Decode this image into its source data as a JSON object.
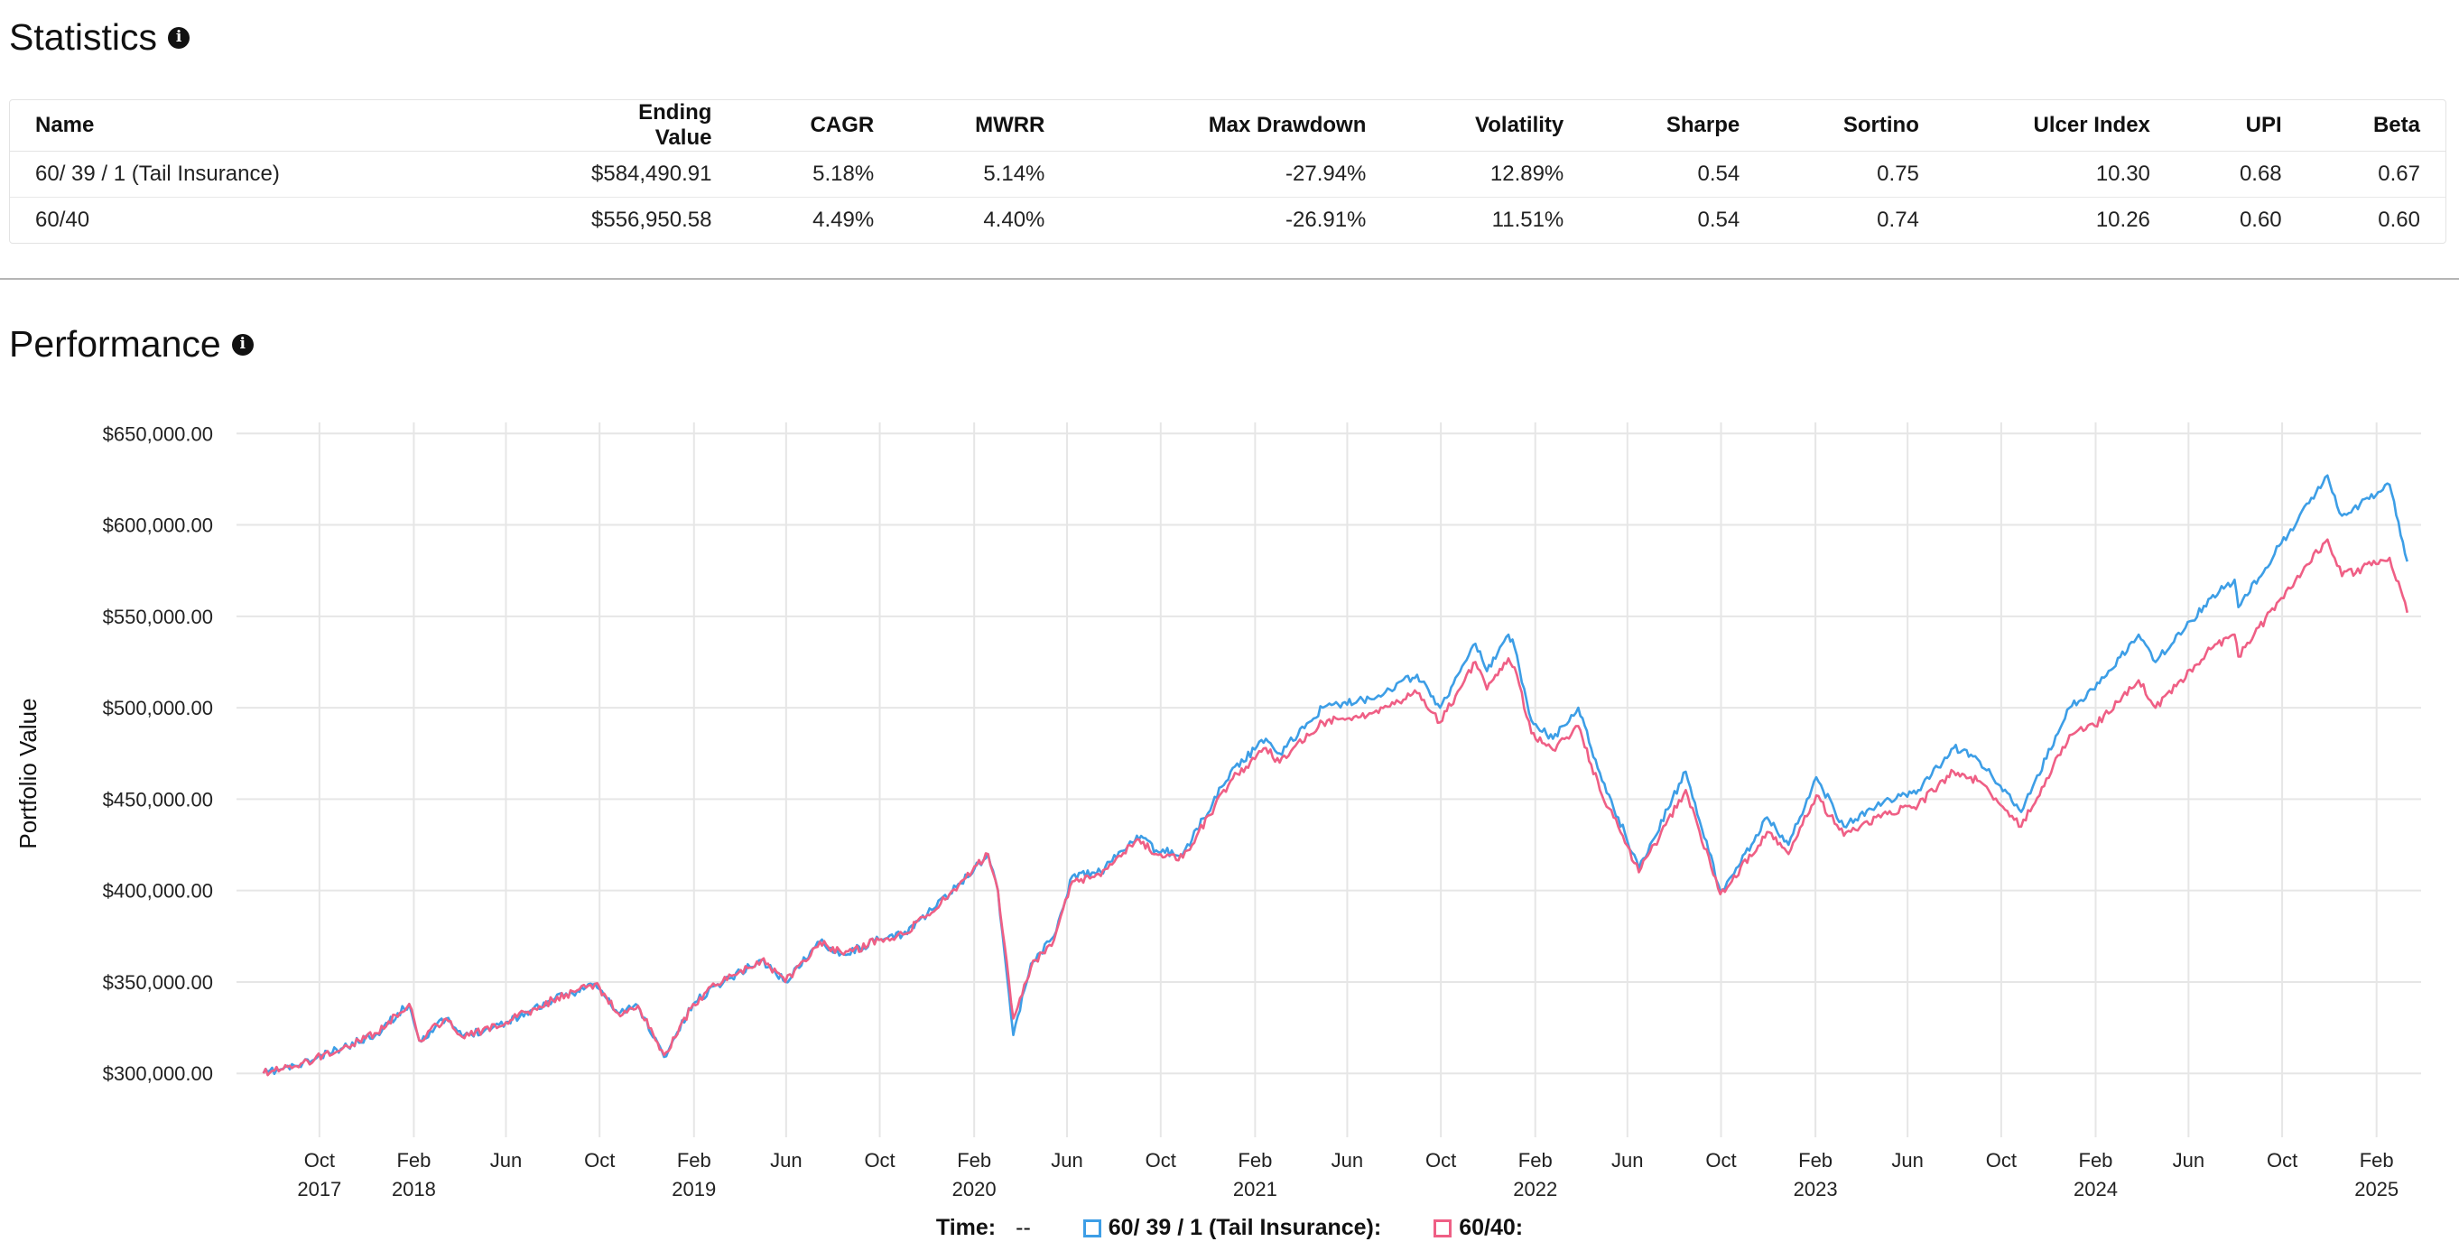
{
  "statistics": {
    "title": "Statistics",
    "columns": [
      "Name",
      "Ending Value",
      "CAGR",
      "MWRR",
      "Max Drawdown",
      "Volatility",
      "Sharpe",
      "Sortino",
      "Ulcer Index",
      "UPI",
      "Beta"
    ],
    "rows": [
      [
        "60/ 39 / 1 (Tail Insurance)",
        "$584,490.91",
        "5.18%",
        "5.14%",
        "-27.94%",
        "12.89%",
        "0.54",
        "0.75",
        "10.30",
        "0.68",
        "0.67"
      ],
      [
        "60/40",
        "$556,950.58",
        "4.49%",
        "4.40%",
        "-26.91%",
        "11.51%",
        "0.54",
        "0.74",
        "10.26",
        "0.60",
        "0.60"
      ]
    ]
  },
  "performance": {
    "title": "Performance",
    "legend": {
      "time_label": "Time:",
      "time_value": "--",
      "series1_label": "60/ 39 / 1 (Tail Insurance):",
      "series2_label": "60/40:"
    }
  },
  "chart_data": {
    "type": "line",
    "ylabel": "Portfolio Value",
    "ylim": [
      270000,
      660000
    ],
    "y_ticks": [
      {
        "value": 300000,
        "label": "$300,000.00"
      },
      {
        "value": 350000,
        "label": "$350,000.00"
      },
      {
        "value": 400000,
        "label": "$400,000.00"
      },
      {
        "value": 450000,
        "label": "$450,000.00"
      },
      {
        "value": 500000,
        "label": "$500,000.00"
      },
      {
        "value": 550000,
        "label": "$550,000.00"
      },
      {
        "value": 600000,
        "label": "$600,000.00"
      },
      {
        "value": 650000,
        "label": "$650,000.00"
      }
    ],
    "xlim": [
      "2017-06-15",
      "2025-03-31"
    ],
    "x_ticks": [
      {
        "date": "2017-10-01",
        "month": "Oct",
        "year": "2017"
      },
      {
        "date": "2018-02-01",
        "month": "Feb",
        "year": "2018"
      },
      {
        "date": "2018-06-01",
        "month": "Jun",
        "year": ""
      },
      {
        "date": "2018-10-01",
        "month": "Oct",
        "year": ""
      },
      {
        "date": "2019-02-01",
        "month": "Feb",
        "year": "2019"
      },
      {
        "date": "2019-06-01",
        "month": "Jun",
        "year": ""
      },
      {
        "date": "2019-10-01",
        "month": "Oct",
        "year": ""
      },
      {
        "date": "2020-02-01",
        "month": "Feb",
        "year": "2020"
      },
      {
        "date": "2020-06-01",
        "month": "Jun",
        "year": ""
      },
      {
        "date": "2020-10-01",
        "month": "Oct",
        "year": ""
      },
      {
        "date": "2021-02-01",
        "month": "Feb",
        "year": "2021"
      },
      {
        "date": "2021-06-01",
        "month": "Jun",
        "year": ""
      },
      {
        "date": "2021-10-01",
        "month": "Oct",
        "year": ""
      },
      {
        "date": "2022-02-01",
        "month": "Feb",
        "year": "2022"
      },
      {
        "date": "2022-06-01",
        "month": "Jun",
        "year": ""
      },
      {
        "date": "2022-10-01",
        "month": "Oct",
        "year": ""
      },
      {
        "date": "2023-02-01",
        "month": "Feb",
        "year": "2023"
      },
      {
        "date": "2023-06-01",
        "month": "Jun",
        "year": ""
      },
      {
        "date": "2023-10-01",
        "month": "Oct",
        "year": ""
      },
      {
        "date": "2024-02-01",
        "month": "Feb",
        "year": "2024"
      },
      {
        "date": "2024-06-01",
        "month": "Jun",
        "year": ""
      },
      {
        "date": "2024-10-01",
        "month": "Oct",
        "year": ""
      },
      {
        "date": "2025-02-01",
        "month": "Feb",
        "year": "2025"
      }
    ],
    "grid": true,
    "series": [
      {
        "name": "60/ 39 / 1 (Tail Insurance)",
        "color": "#3d9ee6",
        "points": [
          [
            "2017-07-20",
            300000
          ],
          [
            "2017-09-01",
            304000
          ],
          [
            "2017-11-01",
            314000
          ],
          [
            "2017-12-15",
            322000
          ],
          [
            "2018-01-26",
            338000
          ],
          [
            "2018-02-08",
            318000
          ],
          [
            "2018-03-15",
            330000
          ],
          [
            "2018-04-05",
            320000
          ],
          [
            "2018-06-01",
            328000
          ],
          [
            "2018-08-01",
            340000
          ],
          [
            "2018-09-25",
            349000
          ],
          [
            "2018-10-25",
            333000
          ],
          [
            "2018-11-20",
            337000
          ],
          [
            "2018-12-24",
            309000
          ],
          [
            "2019-01-31",
            338000
          ],
          [
            "2019-03-01",
            348000
          ],
          [
            "2019-04-30",
            362000
          ],
          [
            "2019-05-31",
            350000
          ],
          [
            "2019-07-15",
            372000
          ],
          [
            "2019-08-15",
            365000
          ],
          [
            "2019-09-30",
            373000
          ],
          [
            "2019-10-31",
            376000
          ],
          [
            "2019-12-31",
            398000
          ],
          [
            "2020-02-19",
            420000
          ],
          [
            "2020-03-03",
            400000
          ],
          [
            "2020-03-23",
            321000
          ],
          [
            "2020-04-15",
            360000
          ],
          [
            "2020-05-15",
            375000
          ],
          [
            "2020-06-08",
            408000
          ],
          [
            "2020-07-15",
            410000
          ],
          [
            "2020-08-31",
            430000
          ],
          [
            "2020-09-25",
            422000
          ],
          [
            "2020-10-30",
            420000
          ],
          [
            "2020-12-31",
            465000
          ],
          [
            "2021-02-15",
            483000
          ],
          [
            "2021-03-05",
            475000
          ],
          [
            "2021-04-30",
            500000
          ],
          [
            "2021-06-30",
            505000
          ],
          [
            "2021-08-31",
            518000
          ],
          [
            "2021-09-30",
            500000
          ],
          [
            "2021-11-15",
            535000
          ],
          [
            "2021-11-30",
            520000
          ],
          [
            "2021-12-28",
            540000
          ],
          [
            "2022-01-05",
            533000
          ],
          [
            "2022-01-27",
            493000
          ],
          [
            "2022-02-24",
            483000
          ],
          [
            "2022-03-29",
            500000
          ],
          [
            "2022-04-29",
            460000
          ],
          [
            "2022-05-20",
            440000
          ],
          [
            "2022-06-16",
            412000
          ],
          [
            "2022-08-16",
            465000
          ],
          [
            "2022-09-30",
            400000
          ],
          [
            "2022-10-15",
            408000
          ],
          [
            "2022-11-30",
            440000
          ],
          [
            "2022-12-28",
            425000
          ],
          [
            "2023-02-02",
            462000
          ],
          [
            "2023-03-10",
            435000
          ],
          [
            "2023-04-30",
            448000
          ],
          [
            "2023-06-15",
            455000
          ],
          [
            "2023-07-31",
            478000
          ],
          [
            "2023-08-31",
            472000
          ],
          [
            "2023-10-27",
            443000
          ],
          [
            "2023-12-29",
            500000
          ],
          [
            "2024-01-31",
            510000
          ],
          [
            "2024-03-28",
            540000
          ],
          [
            "2024-04-19",
            525000
          ],
          [
            "2024-06-30",
            560000
          ],
          [
            "2024-07-31",
            570000
          ],
          [
            "2024-08-05",
            555000
          ],
          [
            "2024-09-30",
            590000
          ],
          [
            "2024-11-29",
            627000
          ],
          [
            "2024-12-18",
            605000
          ],
          [
            "2025-02-18",
            622000
          ],
          [
            "2025-03-13",
            580000
          ]
        ]
      },
      {
        "name": "60/40",
        "color": "#ef5f85",
        "points": [
          [
            "2017-07-20",
            300000
          ],
          [
            "2017-09-01",
            304000
          ],
          [
            "2017-11-01",
            314000
          ],
          [
            "2017-12-15",
            322000
          ],
          [
            "2018-01-26",
            338000
          ],
          [
            "2018-02-08",
            318000
          ],
          [
            "2018-03-15",
            330000
          ],
          [
            "2018-04-05",
            320000
          ],
          [
            "2018-06-01",
            328000
          ],
          [
            "2018-08-01",
            340000
          ],
          [
            "2018-09-25",
            349000
          ],
          [
            "2018-10-25",
            333000
          ],
          [
            "2018-11-20",
            337000
          ],
          [
            "2018-12-24",
            310000
          ],
          [
            "2019-01-31",
            338000
          ],
          [
            "2019-03-01",
            348000
          ],
          [
            "2019-04-30",
            362000
          ],
          [
            "2019-05-31",
            350000
          ],
          [
            "2019-07-15",
            372000
          ],
          [
            "2019-08-15",
            365000
          ],
          [
            "2019-09-30",
            373000
          ],
          [
            "2019-10-31",
            376000
          ],
          [
            "2019-12-31",
            398000
          ],
          [
            "2020-02-19",
            420000
          ],
          [
            "2020-03-03",
            400000
          ],
          [
            "2020-03-23",
            330000
          ],
          [
            "2020-04-15",
            358000
          ],
          [
            "2020-05-15",
            373000
          ],
          [
            "2020-06-08",
            405000
          ],
          [
            "2020-07-15",
            408000
          ],
          [
            "2020-08-31",
            428000
          ],
          [
            "2020-09-25",
            420000
          ],
          [
            "2020-10-30",
            418000
          ],
          [
            "2020-12-31",
            460000
          ],
          [
            "2021-02-15",
            478000
          ],
          [
            "2021-03-05",
            470000
          ],
          [
            "2021-04-30",
            492000
          ],
          [
            "2021-06-30",
            497000
          ],
          [
            "2021-08-31",
            508000
          ],
          [
            "2021-09-30",
            492000
          ],
          [
            "2021-11-15",
            525000
          ],
          [
            "2021-11-30",
            510000
          ],
          [
            "2021-12-28",
            527000
          ],
          [
            "2022-01-05",
            522000
          ],
          [
            "2022-01-27",
            486000
          ],
          [
            "2022-02-24",
            477000
          ],
          [
            "2022-03-29",
            490000
          ],
          [
            "2022-04-29",
            452000
          ],
          [
            "2022-05-20",
            435000
          ],
          [
            "2022-06-16",
            410000
          ],
          [
            "2022-08-16",
            455000
          ],
          [
            "2022-09-30",
            398000
          ],
          [
            "2022-10-15",
            405000
          ],
          [
            "2022-11-30",
            432000
          ],
          [
            "2022-12-28",
            420000
          ],
          [
            "2023-02-02",
            452000
          ],
          [
            "2023-03-10",
            430000
          ],
          [
            "2023-04-30",
            442000
          ],
          [
            "2023-06-15",
            447000
          ],
          [
            "2023-07-31",
            465000
          ],
          [
            "2023-08-31",
            460000
          ],
          [
            "2023-10-27",
            435000
          ],
          [
            "2023-12-29",
            485000
          ],
          [
            "2024-01-31",
            490000
          ],
          [
            "2024-03-28",
            515000
          ],
          [
            "2024-04-19",
            500000
          ],
          [
            "2024-06-30",
            532000
          ],
          [
            "2024-07-31",
            540000
          ],
          [
            "2024-08-05",
            528000
          ],
          [
            "2024-09-30",
            560000
          ],
          [
            "2024-11-29",
            592000
          ],
          [
            "2024-12-18",
            572000
          ],
          [
            "2025-02-18",
            582000
          ],
          [
            "2025-03-13",
            552000
          ]
        ]
      }
    ]
  }
}
